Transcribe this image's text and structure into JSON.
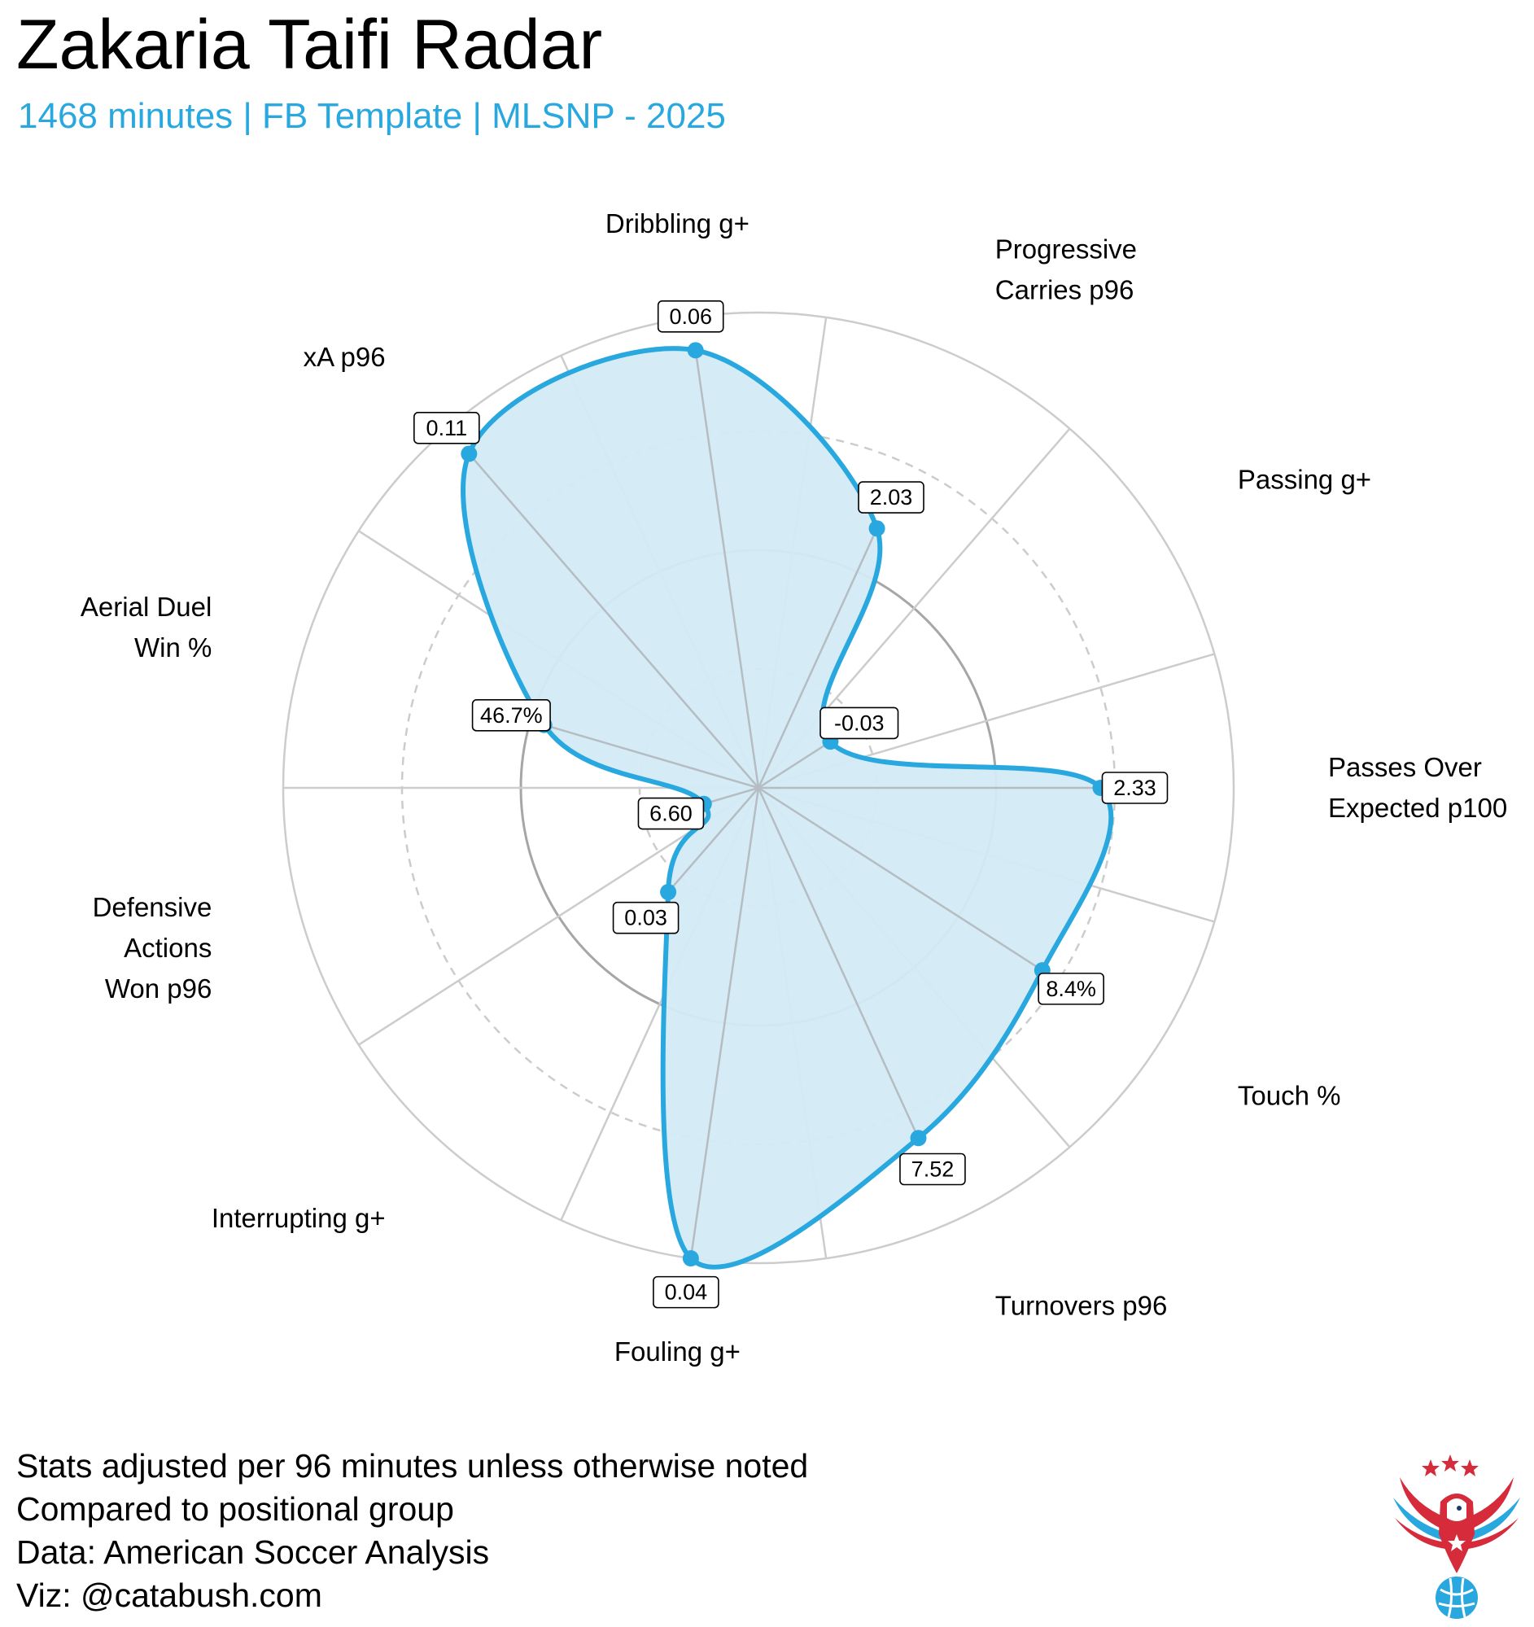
{
  "header": {
    "title": "Zakaria Taifi Radar",
    "subtitle": "1468 minutes | FB Template | MLSNP - 2025"
  },
  "footer": {
    "lines": [
      "Stats adjusted per 96 minutes unless otherwise noted",
      "Compared to positional group",
      "Data: American Soccer Analysis",
      "Viz: @catabush.com"
    ]
  },
  "colors": {
    "accent": "#29a8df",
    "fill": "#d3ebf7",
    "grid": "#cccccc",
    "grid_dark": "#a6a6a6",
    "logo_red": "#d62b3a",
    "logo_blue": "#29a8df"
  },
  "logo": {
    "icon": "eagle-soccer-ball-logo"
  },
  "chart_data": {
    "type": "radar",
    "title": "Zakaria Taifi Radar",
    "scale": "percentile",
    "range": [
      0,
      100
    ],
    "rings": [
      25,
      50,
      75,
      100
    ],
    "axes": [
      {
        "name": "Passes Over Expected p100",
        "lines": [
          "Passes Over",
          "Expected p100"
        ],
        "value_label": "2.33",
        "percentile": 72
      },
      {
        "name": "Passing g+",
        "lines": [
          "Passing g+"
        ],
        "value_label": "-0.03",
        "percentile": 18
      },
      {
        "name": "Progressive Carries p96",
        "lines": [
          "Progressive",
          "Carries p96"
        ],
        "value_label": "2.03",
        "percentile": 60
      },
      {
        "name": "Dribbling g+",
        "lines": [
          "Dribbling g+"
        ],
        "value_label": "0.06",
        "percentile": 93
      },
      {
        "name": "xA p96",
        "lines": [
          "xA p96"
        ],
        "value_label": "0.11",
        "percentile": 93
      },
      {
        "name": "Aerial Duel Win %",
        "lines": [
          "Aerial Duel",
          "Win %"
        ],
        "value_label": "46.7%",
        "percentile": 47
      },
      {
        "name": "Defensive Actions Won p96",
        "lines": [
          "Defensive",
          "Actions",
          "Won p96"
        ],
        "value_label": "6.60",
        "percentile": 12
      },
      {
        "name": "Interrupting g+",
        "lines": [
          "Interrupting g+"
        ],
        "value_label": "0.03",
        "percentile": 29
      },
      {
        "name": "Fouling g+",
        "lines": [
          "Fouling g+"
        ],
        "value_label": "0.04",
        "percentile": 100
      },
      {
        "name": "Turnovers p96",
        "lines": [
          "Turnovers p96"
        ],
        "value_label": "7.52",
        "percentile": 81
      },
      {
        "name": "Touch %",
        "lines": [
          "Touch %"
        ],
        "value_label": "8.4%",
        "percentile": 71
      }
    ]
  }
}
